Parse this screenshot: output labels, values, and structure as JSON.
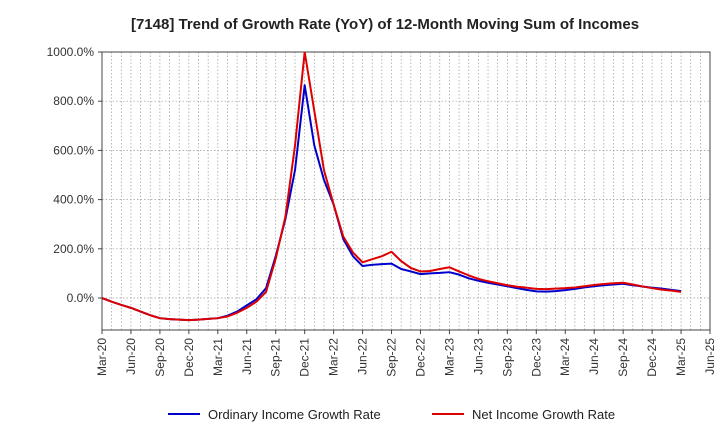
{
  "chart_data": {
    "type": "line",
    "title": "[7148]  Trend of Growth Rate (YoY) of 12-Month Moving Sum of Incomes",
    "xlabel": "",
    "ylabel": "",
    "ylim": [
      -130,
      1000
    ],
    "yticks": [
      0,
      200,
      400,
      600,
      800,
      1000
    ],
    "ytick_labels": [
      "0.0%",
      "200.0%",
      "400.0%",
      "600.0%",
      "800.0%",
      "1000.0%"
    ],
    "xtick_labels": [
      "Mar-20",
      "Jun-20",
      "Sep-20",
      "Dec-20",
      "Mar-21",
      "Jun-21",
      "Sep-21",
      "Dec-21",
      "Mar-22",
      "Jun-22",
      "Sep-22",
      "Dec-22",
      "Mar-23",
      "Jun-23",
      "Sep-23",
      "Dec-23",
      "Mar-24",
      "Jun-24",
      "Sep-24",
      "Dec-24",
      "Mar-25",
      "Jun-25"
    ],
    "grid": true,
    "legend_position": "bottom",
    "x": [
      "2020-03",
      "2020-04",
      "2020-05",
      "2020-06",
      "2020-07",
      "2020-08",
      "2020-09",
      "2020-10",
      "2020-11",
      "2020-12",
      "2021-01",
      "2021-02",
      "2021-03",
      "2021-04",
      "2021-05",
      "2021-06",
      "2021-07",
      "2021-08",
      "2021-09",
      "2021-10",
      "2021-11",
      "2021-12",
      "2022-01",
      "2022-02",
      "2022-03",
      "2022-04",
      "2022-05",
      "2022-06",
      "2022-07",
      "2022-08",
      "2022-09",
      "2022-10",
      "2022-11",
      "2022-12",
      "2023-01",
      "2023-02",
      "2023-03",
      "2023-04",
      "2023-05",
      "2023-06",
      "2023-07",
      "2023-08",
      "2023-09",
      "2023-10",
      "2023-11",
      "2023-12",
      "2024-01",
      "2024-02",
      "2024-03",
      "2024-04",
      "2024-05",
      "2024-06",
      "2024-07",
      "2024-08",
      "2024-09",
      "2024-10",
      "2024-11",
      "2024-12",
      "2025-01",
      "2025-02",
      "2025-03"
    ],
    "series": [
      {
        "name": "Ordinary Income Growth Rate",
        "color": "#0000cc",
        "values": [
          0,
          -15,
          -28,
          -40,
          -55,
          -70,
          -82,
          -86,
          -88,
          -90,
          -88,
          -85,
          -82,
          -72,
          -55,
          -30,
          -5,
          40,
          170,
          320,
          520,
          865,
          620,
          480,
          380,
          240,
          170,
          130,
          135,
          138,
          140,
          118,
          108,
          97,
          100,
          102,
          105,
          95,
          80,
          70,
          62,
          55,
          48,
          40,
          33,
          27,
          26,
          28,
          32,
          37,
          43,
          48,
          52,
          55,
          58,
          52,
          47,
          42,
          38,
          33,
          28
        ]
      },
      {
        "name": "Net Income Growth Rate",
        "color": "#dd0000",
        "values": [
          0,
          -15,
          -28,
          -40,
          -55,
          -70,
          -82,
          -86,
          -88,
          -90,
          -88,
          -85,
          -82,
          -75,
          -60,
          -40,
          -15,
          25,
          160,
          330,
          620,
          1000,
          760,
          520,
          380,
          250,
          185,
          145,
          158,
          170,
          188,
          150,
          122,
          108,
          110,
          118,
          125,
          108,
          92,
          78,
          68,
          60,
          52,
          46,
          42,
          37,
          36,
          38,
          40,
          43,
          48,
          53,
          57,
          60,
          62,
          55,
          47,
          40,
          34,
          30,
          25
        ]
      }
    ]
  }
}
